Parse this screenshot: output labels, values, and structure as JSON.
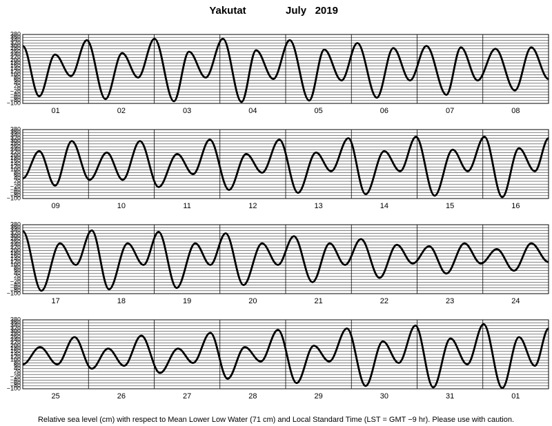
{
  "page": {
    "station": "Yakutat",
    "period": "July   2019",
    "note": "Relative sea level (cm) with respect to Mean Lower Low Water (71 cm) and Local Standard Time (LST = GMT −9 hr). Please use with caution."
  },
  "chart_data": [
    {
      "type": "line",
      "color": "#000000",
      "grid": true,
      "xlim": [
        0,
        192
      ],
      "ylim": [
        -100,
        380
      ],
      "yticks": [
        380,
        360,
        340,
        320,
        300,
        280,
        260,
        240,
        220,
        200,
        180,
        160,
        140,
        120,
        100,
        80,
        60,
        40,
        20,
        0,
        {
          "value": -20,
          "label": "−20"
        },
        {
          "value": -40,
          "label": "−40"
        },
        {
          "value": -60,
          "label": "−60"
        },
        {
          "value": -80,
          "label": "−80"
        },
        {
          "value": -100,
          "label": "−100"
        }
      ],
      "categories": [
        "01",
        "02",
        "03",
        "04",
        "05",
        "06",
        "07",
        "08"
      ],
      "x": [
        0,
        6.0,
        11.8,
        17.6,
        23.4,
        30.2,
        36.3,
        42.1,
        48.1,
        55.2,
        60.7,
        66.8,
        73.1,
        79.9,
        85.2,
        91.5,
        97.5,
        104.6,
        110.1,
        116.4,
        122.2,
        129.3,
        135.3,
        141.4,
        147.4,
        154.7,
        160.0,
        166.1,
        172.6,
        179.7,
        185.7,
        192
      ],
      "values": [
        300,
        -50,
        240,
        90,
        340,
        -70,
        250,
        80,
        350,
        -85,
        260,
        80,
        350,
        -90,
        270,
        70,
        340,
        -80,
        275,
        60,
        320,
        -60,
        285,
        60,
        300,
        -40,
        290,
        60,
        280,
        -10,
        290,
        70
      ]
    },
    {
      "type": "line",
      "color": "#000000",
      "grid": true,
      "xlim": [
        0,
        192
      ],
      "ylim": [
        -100,
        380
      ],
      "yticks": [
        380,
        360,
        340,
        320,
        300,
        280,
        260,
        240,
        220,
        200,
        180,
        160,
        140,
        120,
        100,
        80,
        60,
        40,
        20,
        0,
        {
          "value": -20,
          "label": "−20"
        },
        {
          "value": -40,
          "label": "−40"
        },
        {
          "value": -60,
          "label": "−60"
        },
        {
          "value": -80,
          "label": "−80"
        },
        {
          "value": -100,
          "label": "−100"
        }
      ],
      "categories": [
        "09",
        "10",
        "11",
        "12",
        "13",
        "14",
        "15",
        "16"
      ],
      "x": [
        0,
        6.0,
        11.8,
        17.9,
        24.4,
        30.7,
        36.5,
        42.8,
        49.6,
        56.4,
        62.2,
        68.3,
        75.3,
        81.6,
        87.4,
        93.7,
        100.5,
        107.1,
        112.6,
        118.9,
        125.2,
        132.0,
        137.8,
        143.6,
        150.4,
        157.0,
        162.5,
        168.6,
        175.1,
        181.2,
        187.0,
        192
      ],
      "values": [
        40,
        230,
        -10,
        300,
        30,
        220,
        30,
        300,
        -20,
        210,
        70,
        310,
        -40,
        210,
        80,
        310,
        -60,
        220,
        90,
        320,
        -70,
        230,
        90,
        330,
        -80,
        240,
        90,
        330,
        -90,
        250,
        90,
        320
      ]
    },
    {
      "type": "line",
      "color": "#000000",
      "grid": true,
      "xlim": [
        0,
        192
      ],
      "ylim": [
        -100,
        380
      ],
      "yticks": [
        380,
        360,
        340,
        320,
        300,
        280,
        260,
        240,
        220,
        200,
        180,
        160,
        140,
        120,
        100,
        80,
        60,
        40,
        20,
        0,
        {
          "value": -20,
          "label": "−20"
        },
        {
          "value": -40,
          "label": "−40"
        },
        {
          "value": -60,
          "label": "−60"
        },
        {
          "value": -80,
          "label": "−80"
        },
        {
          "value": -100,
          "label": "−100"
        }
      ],
      "categories": [
        "17",
        "18",
        "19",
        "20",
        "21",
        "22",
        "23",
        "24"
      ],
      "x": [
        0,
        6.8,
        13.6,
        19.4,
        25.2,
        31.5,
        38.3,
        44.1,
        49.6,
        56.2,
        63.0,
        68.5,
        74.1,
        80.6,
        87.4,
        93.2,
        99.0,
        105.8,
        112.1,
        117.7,
        123.5,
        130.3,
        136.6,
        142.4,
        148.4,
        154.7,
        161.3,
        167.3,
        173.1,
        179.4,
        185.7,
        192
      ],
      "values": [
        335,
        -80,
        250,
        100,
        340,
        -70,
        250,
        100,
        330,
        -60,
        250,
        100,
        320,
        -40,
        250,
        100,
        300,
        -20,
        250,
        100,
        280,
        10,
        240,
        110,
        230,
        40,
        250,
        110,
        210,
        60,
        250,
        120
      ]
    },
    {
      "type": "line",
      "color": "#000000",
      "grid": true,
      "xlim": [
        0,
        192
      ],
      "ylim": [
        -100,
        380
      ],
      "yticks": [
        380,
        360,
        340,
        320,
        300,
        280,
        260,
        240,
        220,
        200,
        180,
        160,
        140,
        120,
        100,
        80,
        60,
        40,
        20,
        0,
        {
          "value": -20,
          "label": "−20"
        },
        {
          "value": -40,
          "label": "−40"
        },
        {
          "value": -60,
          "label": "−60"
        },
        {
          "value": -80,
          "label": "−80"
        },
        {
          "value": -100,
          "label": "−100"
        }
      ],
      "categories": [
        "25",
        "26",
        "27",
        "28",
        "29",
        "30",
        "31",
        "01"
      ],
      "x": [
        0,
        6.3,
        12.6,
        18.9,
        25.2,
        31.2,
        37.0,
        43.3,
        50.1,
        56.7,
        62.2,
        68.5,
        74.8,
        81.1,
        86.9,
        93.2,
        100.0,
        106.3,
        111.9,
        118.4,
        125.2,
        131.5,
        137.3,
        143.4,
        149.9,
        156.2,
        162.3,
        168.3,
        175.1,
        181.2,
        187.0,
        192
      ],
      "values": [
        70,
        190,
        70,
        260,
        40,
        180,
        60,
        270,
        10,
        180,
        80,
        290,
        -30,
        190,
        90,
        310,
        -60,
        200,
        90,
        320,
        -80,
        230,
        80,
        340,
        -90,
        250,
        70,
        350,
        -95,
        260,
        60,
        320
      ]
    }
  ]
}
